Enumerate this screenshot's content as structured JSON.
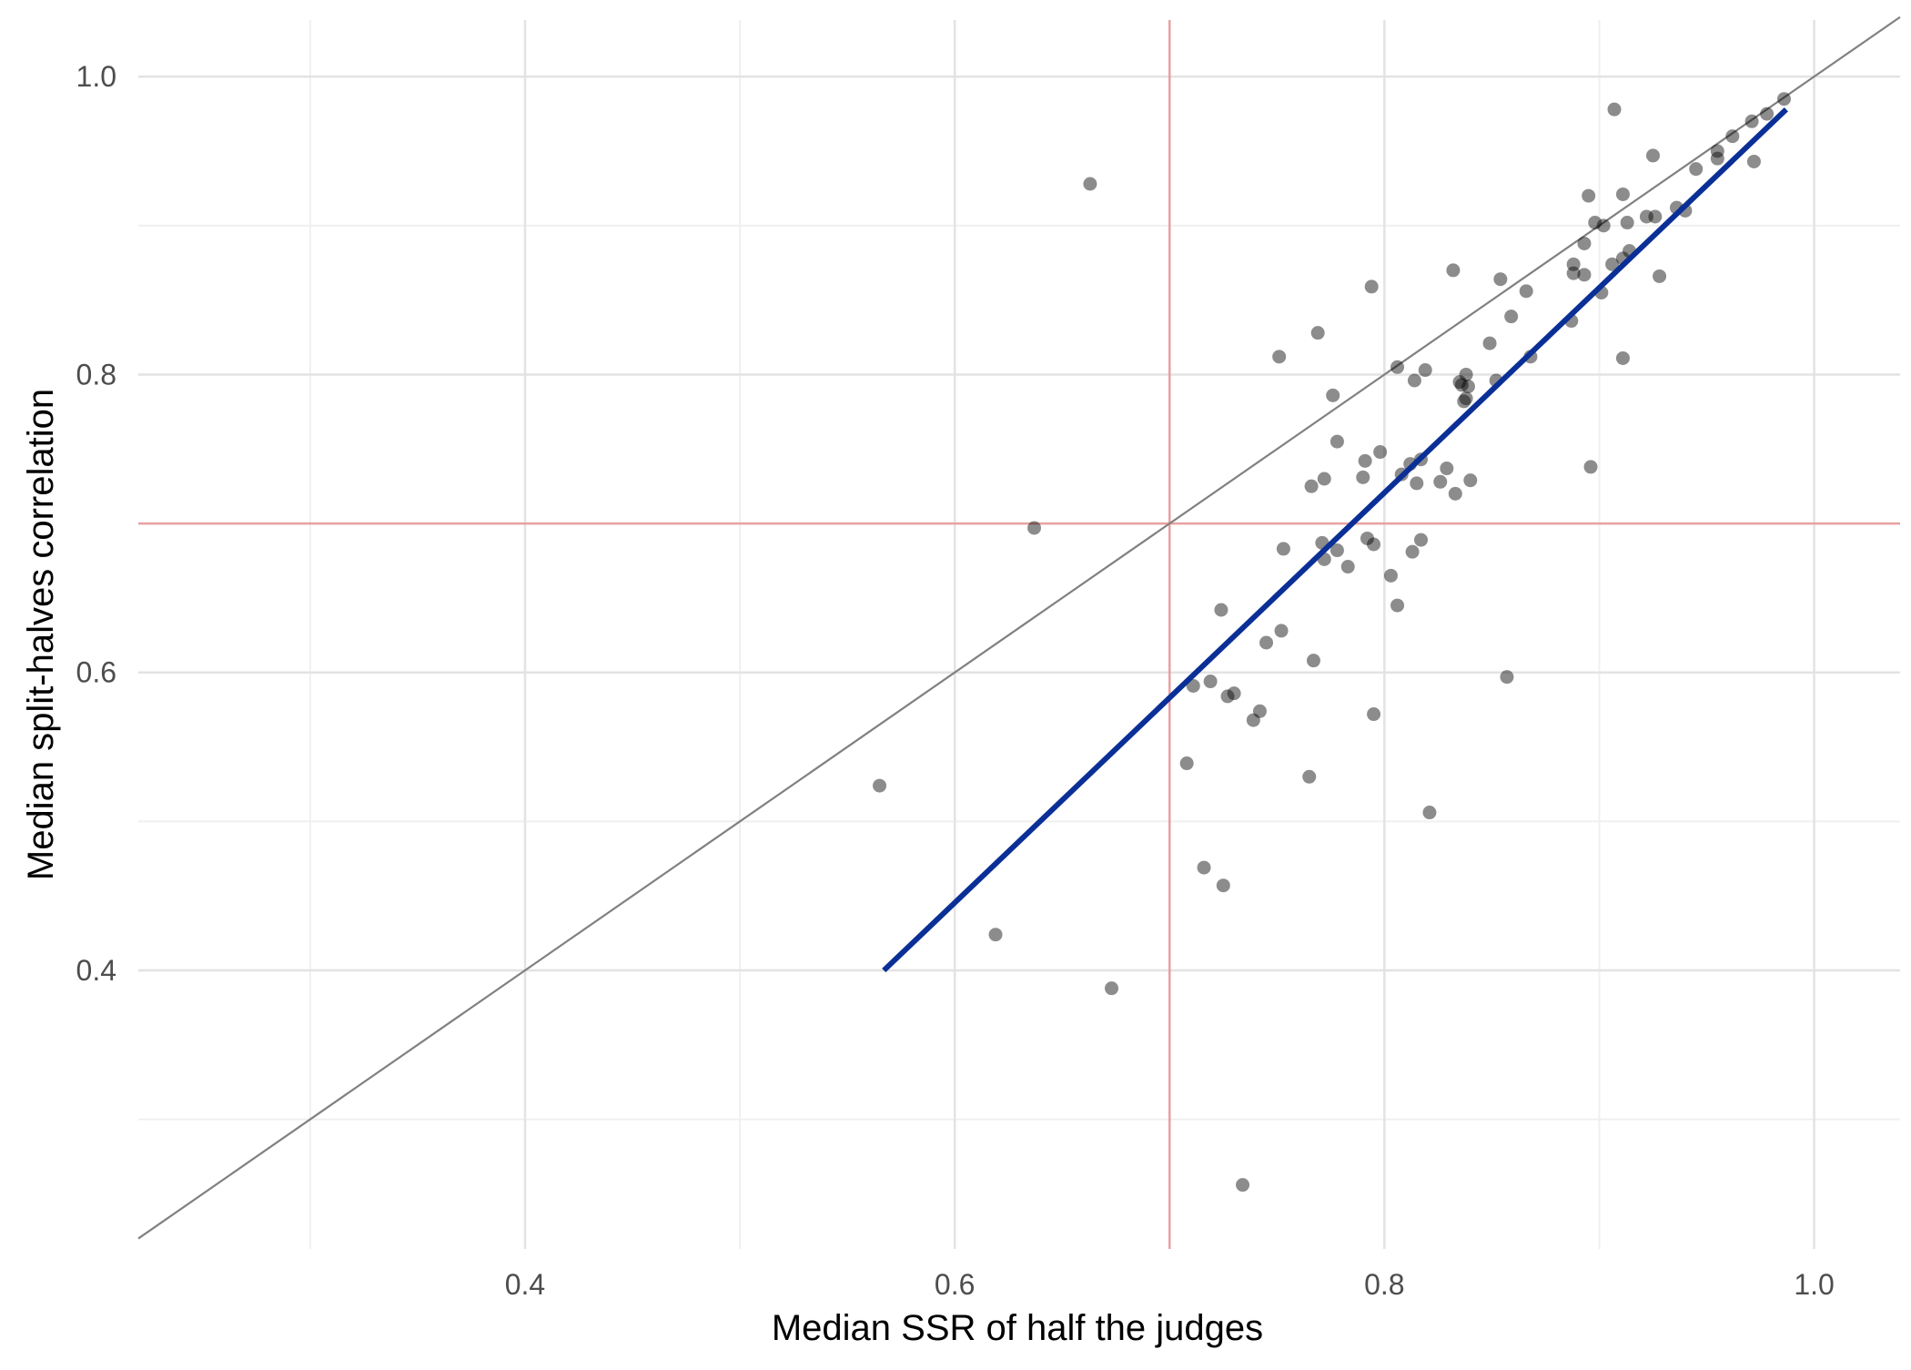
{
  "chart_data": {
    "type": "scatter",
    "title": "",
    "xlabel": "Median SSR of half the judges",
    "ylabel": "Median split-halves correlation",
    "xlim": [
      0.22,
      1.04
    ],
    "ylim": [
      0.213,
      1.038
    ],
    "x_ticks": [
      0.4,
      0.6,
      0.8,
      1.0
    ],
    "x_tick_labels": [
      "0.4",
      "0.6",
      "0.8",
      "1.0"
    ],
    "x_minor_ticks": [
      0.3,
      0.5,
      0.7,
      0.9
    ],
    "y_ticks": [
      0.4,
      0.6,
      0.8,
      1.0
    ],
    "y_tick_labels": [
      "0.4",
      "0.6",
      "0.8",
      "1.0"
    ],
    "y_minor_ticks": [
      0.3,
      0.5,
      0.7,
      0.9
    ],
    "grid": true,
    "reference_lines": {
      "identity": {
        "from": [
          0.22,
          0.22
        ],
        "to": [
          1.04,
          1.04
        ],
        "color": "#808080"
      },
      "vertical": {
        "x": 0.7,
        "color": "#e8a0a0"
      },
      "horizontal": {
        "y": 0.7,
        "color": "#e8a0a0"
      }
    },
    "fit_line": {
      "x": [
        0.567,
        0.987
      ],
      "y": [
        0.4,
        0.978
      ],
      "color": "#0a2f96"
    },
    "point_color": "#000000",
    "point_opacity": 0.45,
    "points": [
      [
        0.663,
        0.928
      ],
      [
        0.907,
        0.978
      ],
      [
        0.986,
        0.985
      ],
      [
        0.978,
        0.975
      ],
      [
        0.971,
        0.97
      ],
      [
        0.962,
        0.96
      ],
      [
        0.955,
        0.95
      ],
      [
        0.955,
        0.945
      ],
      [
        0.972,
        0.943
      ],
      [
        0.925,
        0.947
      ],
      [
        0.945,
        0.938
      ],
      [
        0.895,
        0.92
      ],
      [
        0.911,
        0.921
      ],
      [
        0.936,
        0.912
      ],
      [
        0.94,
        0.91
      ],
      [
        0.922,
        0.906
      ],
      [
        0.926,
        0.906
      ],
      [
        0.898,
        0.902
      ],
      [
        0.902,
        0.9
      ],
      [
        0.913,
        0.902
      ],
      [
        0.893,
        0.888
      ],
      [
        0.914,
        0.883
      ],
      [
        0.911,
        0.878
      ],
      [
        0.906,
        0.874
      ],
      [
        0.888,
        0.874
      ],
      [
        0.893,
        0.867
      ],
      [
        0.888,
        0.868
      ],
      [
        0.928,
        0.866
      ],
      [
        0.832,
        0.87
      ],
      [
        0.854,
        0.864
      ],
      [
        0.901,
        0.855
      ],
      [
        0.866,
        0.856
      ],
      [
        0.794,
        0.859
      ],
      [
        0.859,
        0.839
      ],
      [
        0.887,
        0.836
      ],
      [
        0.769,
        0.828
      ],
      [
        0.849,
        0.821
      ],
      [
        0.868,
        0.812
      ],
      [
        0.911,
        0.811
      ],
      [
        0.751,
        0.812
      ],
      [
        0.806,
        0.805
      ],
      [
        0.819,
        0.803
      ],
      [
        0.838,
        0.8
      ],
      [
        0.814,
        0.796
      ],
      [
        0.835,
        0.795
      ],
      [
        0.852,
        0.796
      ],
      [
        0.836,
        0.793
      ],
      [
        0.839,
        0.792
      ],
      [
        0.776,
        0.786
      ],
      [
        0.838,
        0.784
      ],
      [
        0.837,
        0.782
      ],
      [
        0.778,
        0.755
      ],
      [
        0.798,
        0.748
      ],
      [
        0.791,
        0.742
      ],
      [
        0.817,
        0.743
      ],
      [
        0.812,
        0.74
      ],
      [
        0.896,
        0.738
      ],
      [
        0.829,
        0.737
      ],
      [
        0.808,
        0.733
      ],
      [
        0.79,
        0.731
      ],
      [
        0.772,
        0.73
      ],
      [
        0.84,
        0.729
      ],
      [
        0.826,
        0.728
      ],
      [
        0.815,
        0.727
      ],
      [
        0.766,
        0.725
      ],
      [
        0.833,
        0.72
      ],
      [
        0.637,
        0.697
      ],
      [
        0.792,
        0.69
      ],
      [
        0.817,
        0.689
      ],
      [
        0.771,
        0.687
      ],
      [
        0.795,
        0.686
      ],
      [
        0.753,
        0.683
      ],
      [
        0.778,
        0.682
      ],
      [
        0.813,
        0.681
      ],
      [
        0.772,
        0.676
      ],
      [
        0.783,
        0.671
      ],
      [
        0.803,
        0.665
      ],
      [
        0.806,
        0.645
      ],
      [
        0.724,
        0.642
      ],
      [
        0.752,
        0.628
      ],
      [
        0.745,
        0.62
      ],
      [
        0.767,
        0.608
      ],
      [
        0.857,
        0.597
      ],
      [
        0.719,
        0.594
      ],
      [
        0.711,
        0.591
      ],
      [
        0.73,
        0.586
      ],
      [
        0.727,
        0.584
      ],
      [
        0.742,
        0.574
      ],
      [
        0.795,
        0.572
      ],
      [
        0.739,
        0.568
      ],
      [
        0.708,
        0.539
      ],
      [
        0.765,
        0.53
      ],
      [
        0.565,
        0.524
      ],
      [
        0.821,
        0.506
      ],
      [
        0.716,
        0.469
      ],
      [
        0.725,
        0.457
      ],
      [
        0.619,
        0.424
      ],
      [
        0.673,
        0.388
      ],
      [
        0.734,
        0.256
      ]
    ]
  }
}
